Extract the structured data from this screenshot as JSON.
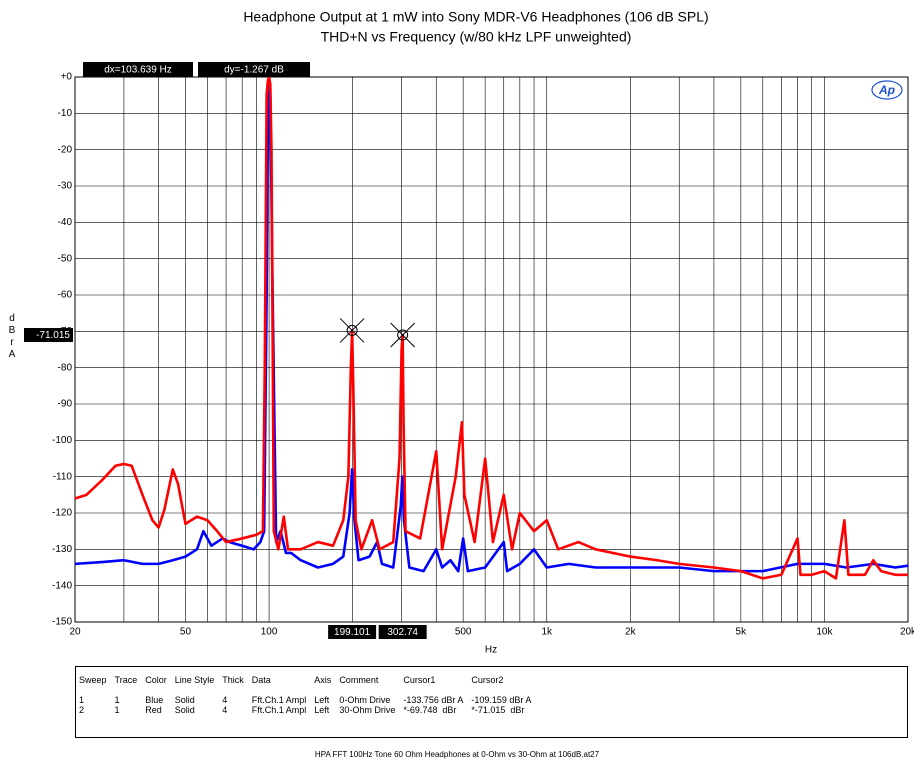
{
  "chart_data": {
    "type": "line",
    "title": "Headphone Output at 1 mW into Sony MDR-V6 Headphones (106 dB SPL)",
    "subtitle": "THD+N vs Frequency (w/80 kHz LPF unweighted)",
    "xlabel": "Hz",
    "ylabel": "dBr A",
    "xscale": "log",
    "grid": true,
    "xlim": [
      20,
      20000
    ],
    "ylim": [
      -150,
      0
    ],
    "xticks": [
      20,
      50,
      100,
      200,
      500,
      {
        "value": 1000,
        "label": "1k"
      },
      {
        "value": 2000,
        "label": "2k"
      },
      {
        "value": 5000,
        "label": "5k"
      },
      {
        "value": 10000,
        "label": "10k"
      },
      {
        "value": 20000,
        "label": "20k"
      }
    ],
    "xminor": [
      30,
      40,
      60,
      70,
      80,
      90,
      300,
      400,
      600,
      700,
      800,
      900,
      3000,
      4000,
      6000,
      7000,
      8000,
      9000
    ],
    "yticks": [
      {
        "value": 0,
        "label": "+0"
      },
      -10,
      -20,
      -30,
      -40,
      -50,
      -60,
      -70,
      -80,
      -90,
      -100,
      -110,
      -120,
      -130,
      -140,
      -150
    ],
    "cursor_dx": "dx=103.639 Hz",
    "cursor_dy": "dy=-1.267  dB",
    "cursors": [
      {
        "x": 199.101,
        "y": -69.748
      },
      {
        "x": 302.74,
        "y": -71.015
      }
    ],
    "logo": "Ap",
    "series": [
      {
        "name": "0-Ohm Drive",
        "color": "#0000ff",
        "x": [
          20,
          25,
          30,
          35,
          40,
          45,
          50,
          55,
          58,
          62,
          68,
          72,
          80,
          88,
          93,
          96,
          98,
          99,
          100,
          101,
          103,
          106,
          110,
          115,
          120,
          130,
          150,
          170,
          185,
          195,
          199,
          203,
          210,
          230,
          245,
          255,
          280,
          298,
          302,
          306,
          320,
          360,
          400,
          420,
          450,
          480,
          500,
          520,
          600,
          700,
          720,
          800,
          900,
          1000,
          1200,
          1500,
          2000,
          3000,
          4000,
          5000,
          6000,
          8000,
          10000,
          12000,
          15000,
          18000,
          20000
        ],
        "values": [
          -134,
          -133.5,
          -133,
          -134,
          -134,
          -133,
          -132,
          -130,
          -125,
          -129,
          -127,
          -128,
          -129,
          -130,
          -128,
          -125,
          -60,
          -10,
          0,
          -5,
          -60,
          -128,
          -125,
          -131,
          -131,
          -133,
          -135,
          -134,
          -132,
          -120,
          -108,
          -122,
          -133,
          -132,
          -128,
          -134,
          -135,
          -118,
          -110,
          -122,
          -135,
          -136,
          -130,
          -135,
          -133,
          -136,
          -127,
          -136,
          -135,
          -128,
          -136,
          -134,
          -130,
          -135,
          -134,
          -135,
          -135,
          -135,
          -136,
          -136,
          -136,
          -134,
          -134,
          -135,
          -134,
          -135,
          -134.5
        ]
      },
      {
        "name": "30-Ohm Drive",
        "color": "#ff0000",
        "x": [
          20,
          22,
          25,
          28,
          30,
          32,
          35,
          38,
          40,
          42,
          45,
          47,
          50,
          55,
          60,
          65,
          70,
          80,
          90,
          95,
          96.5,
          98,
          99,
          100,
          101,
          102,
          104,
          108,
          113,
          117,
          130,
          150,
          170,
          185,
          193,
          197,
          199.101,
          201,
          205,
          215,
          235,
          250,
          280,
          295,
          300,
          302.74,
          305,
          310,
          350,
          400,
          420,
          470,
          495,
          505,
          550,
          600,
          640,
          700,
          750,
          800,
          900,
          1000,
          1100,
          1300,
          1500,
          2000,
          2500,
          3000,
          4000,
          5000,
          6000,
          7000,
          8000,
          8200,
          9000,
          10000,
          11000,
          11800,
          12200,
          14000,
          15000,
          16000,
          18000,
          20000
        ],
        "values": [
          -116,
          -115,
          -111,
          -107,
          -106.5,
          -107,
          -115,
          -122,
          -124,
          -119,
          -108,
          -112,
          -123,
          -121,
          -122,
          -125,
          -128,
          -127,
          -126,
          -125,
          -80,
          -5,
          -1,
          0,
          -2,
          -20,
          -125,
          -130,
          -121,
          -130,
          -130,
          -128,
          -129,
          -122,
          -110,
          -80,
          -69.748,
          -85,
          -122,
          -130,
          -122,
          -130,
          -128,
          -105,
          -75,
          -71.015,
          -95,
          -125,
          -127,
          -103,
          -130,
          -110,
          -95,
          -115,
          -128,
          -105,
          -128,
          -115,
          -130,
          -120,
          -125,
          -122,
          -130,
          -128,
          -130,
          -132,
          -133,
          -134,
          -135,
          -136,
          -138,
          -137,
          -127,
          -137,
          -137,
          -136,
          -138,
          -122,
          -137,
          -137,
          -133,
          -136,
          -137,
          -137
        ]
      }
    ],
    "table": {
      "columns": [
        "Sweep",
        "Trace",
        "Color",
        "Line Style",
        "Thick",
        "Data",
        "Axis",
        "Comment",
        "Cursor1",
        "Cursor2"
      ],
      "rows": [
        [
          "1",
          "1",
          "Blue",
          "Solid",
          "4",
          "Fft.Ch.1 Ampl",
          "Left",
          "0-Ohm Drive",
          "-133.756 dBr A",
          "-109.159 dBr A"
        ],
        [
          "2",
          "1",
          "Red",
          "Solid",
          "4",
          "Fft.Ch.1 Ampl",
          "Left",
          "30-Ohm Drive",
          "*-69.748  dBr",
          "*-71.015  dBr"
        ]
      ]
    },
    "footer": "HPA FFT 100Hz Tone 60 Ohm Headphones at 0-Ohm vs 30-Ohm at 106dB.at27"
  }
}
